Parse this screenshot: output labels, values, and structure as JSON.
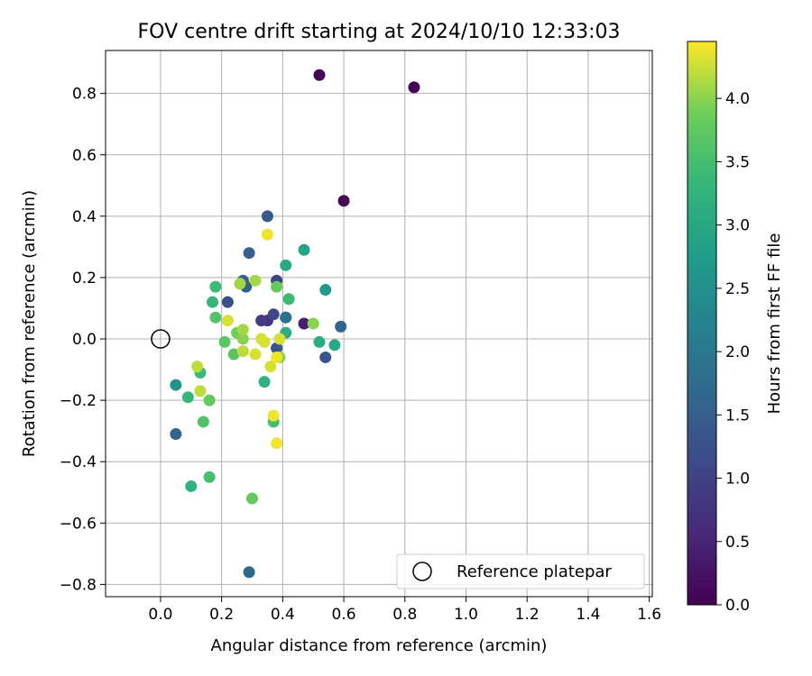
{
  "chart_data": {
    "type": "scatter",
    "title": "FOV centre drift starting at 2024/10/10 12:33:03",
    "xlabel": "Angular distance from reference (arcmin)",
    "ylabel": "Rotation from reference (arcmin)",
    "xlim": [
      -0.18,
      1.61
    ],
    "ylim": [
      -0.84,
      0.94
    ],
    "x_ticks": [
      0.0,
      0.2,
      0.4,
      0.6,
      0.8,
      1.0,
      1.2,
      1.4,
      1.6
    ],
    "x_tick_labels": [
      "0.0",
      "0.2",
      "0.4",
      "0.6",
      "0.8",
      "1.0",
      "1.2",
      "1.4",
      "1.6"
    ],
    "y_ticks": [
      -0.8,
      -0.6,
      -0.4,
      -0.2,
      0.0,
      0.2,
      0.4,
      0.6,
      0.8
    ],
    "y_tick_labels": [
      "−0.8",
      "−0.6",
      "−0.4",
      "−0.2",
      "0.0",
      "0.2",
      "0.4",
      "0.6",
      "0.8"
    ],
    "grid": true,
    "legend": {
      "placement": "lower-right",
      "entries": [
        "Reference platepar"
      ]
    },
    "reference_point": {
      "x": 0.0,
      "y": 0.0,
      "label": "Reference platepar"
    },
    "colorbar": {
      "label": "Hours from first FF file",
      "min": 0.0,
      "max": 4.45,
      "ticks": [
        0.0,
        0.5,
        1.0,
        1.5,
        2.0,
        2.5,
        3.0,
        3.5,
        4.0
      ],
      "tick_labels": [
        "0.0",
        "0.5",
        "1.0",
        "1.5",
        "2.0",
        "2.5",
        "3.0",
        "3.5",
        "4.0"
      ],
      "colormap": "viridis"
    },
    "points": [
      {
        "x": 0.52,
        "y": 0.86,
        "h": 0.05
      },
      {
        "x": 0.83,
        "y": 0.82,
        "h": 0.05
      },
      {
        "x": 0.6,
        "y": 0.45,
        "h": 0.08
      },
      {
        "x": 0.47,
        "y": 0.05,
        "h": 0.4
      },
      {
        "x": 0.35,
        "y": 0.06,
        "h": 0.7
      },
      {
        "x": 0.33,
        "y": 0.06,
        "h": 0.9
      },
      {
        "x": 0.38,
        "y": 0.19,
        "h": 1.0
      },
      {
        "x": 0.37,
        "y": 0.08,
        "h": 1.1
      },
      {
        "x": 0.41,
        "y": 0.07,
        "h": 1.2
      },
      {
        "x": 0.22,
        "y": 0.12,
        "h": 1.2
      },
      {
        "x": 0.54,
        "y": -0.06,
        "h": 1.3
      },
      {
        "x": 0.38,
        "y": -0.03,
        "h": 1.3
      },
      {
        "x": 0.35,
        "y": 0.4,
        "h": 1.4
      },
      {
        "x": 0.29,
        "y": 0.28,
        "h": 1.5
      },
      {
        "x": 0.27,
        "y": 0.19,
        "h": 1.5
      },
      {
        "x": 0.28,
        "y": 0.17,
        "h": 1.5
      },
      {
        "x": 0.59,
        "y": 0.04,
        "h": 1.6
      },
      {
        "x": 0.05,
        "y": -0.31,
        "h": 1.6
      },
      {
        "x": 0.29,
        "y": -0.76,
        "h": 1.7
      },
      {
        "x": 0.41,
        "y": 0.07,
        "h": 1.8
      },
      {
        "x": 0.05,
        "y": -0.15,
        "h": 2.6
      },
      {
        "x": 0.54,
        "y": 0.16,
        "h": 2.7
      },
      {
        "x": 0.47,
        "y": 0.29,
        "h": 2.9
      },
      {
        "x": 0.41,
        "y": 0.24,
        "h": 3.0
      },
      {
        "x": 0.57,
        "y": -0.02,
        "h": 3.0
      },
      {
        "x": 0.52,
        "y": -0.01,
        "h": 3.1
      },
      {
        "x": 0.41,
        "y": 0.02,
        "h": 3.1
      },
      {
        "x": 0.34,
        "y": -0.14,
        "h": 3.2
      },
      {
        "x": 0.1,
        "y": -0.48,
        "h": 3.2
      },
      {
        "x": 0.09,
        "y": -0.19,
        "h": 3.3
      },
      {
        "x": 0.17,
        "y": 0.12,
        "h": 3.3
      },
      {
        "x": 0.42,
        "y": 0.13,
        "h": 3.4
      },
      {
        "x": 0.18,
        "y": 0.17,
        "h": 3.4
      },
      {
        "x": 0.13,
        "y": -0.11,
        "h": 3.4
      },
      {
        "x": 0.37,
        "y": -0.27,
        "h": 3.5
      },
      {
        "x": 0.16,
        "y": -0.45,
        "h": 3.5
      },
      {
        "x": 0.14,
        "y": -0.27,
        "h": 3.6
      },
      {
        "x": 0.18,
        "y": 0.07,
        "h": 3.6
      },
      {
        "x": 0.24,
        "y": -0.05,
        "h": 3.7
      },
      {
        "x": 0.21,
        "y": -0.01,
        "h": 3.7
      },
      {
        "x": 0.3,
        "y": -0.52,
        "h": 3.8
      },
      {
        "x": 0.38,
        "y": 0.17,
        "h": 3.8
      },
      {
        "x": 0.16,
        "y": -0.2,
        "h": 3.8
      },
      {
        "x": 0.25,
        "y": 0.02,
        "h": 3.9
      },
      {
        "x": 0.27,
        "y": 0.0,
        "h": 4.0
      },
      {
        "x": 0.5,
        "y": 0.05,
        "h": 4.0
      },
      {
        "x": 0.39,
        "y": -0.06,
        "h": 4.0
      },
      {
        "x": 0.31,
        "y": 0.19,
        "h": 4.1
      },
      {
        "x": 0.26,
        "y": 0.18,
        "h": 4.1
      },
      {
        "x": 0.27,
        "y": 0.03,
        "h": 4.1
      },
      {
        "x": 0.27,
        "y": -0.04,
        "h": 4.2
      },
      {
        "x": 0.12,
        "y": -0.09,
        "h": 4.2
      },
      {
        "x": 0.13,
        "y": -0.17,
        "h": 4.2
      },
      {
        "x": 0.22,
        "y": 0.06,
        "h": 4.3
      },
      {
        "x": 0.36,
        "y": -0.09,
        "h": 4.3
      },
      {
        "x": 0.34,
        "y": -0.01,
        "h": 4.3
      },
      {
        "x": 0.33,
        "y": 0.0,
        "h": 4.3
      },
      {
        "x": 0.31,
        "y": -0.05,
        "h": 4.3
      },
      {
        "x": 0.39,
        "y": 0.0,
        "h": 4.3
      },
      {
        "x": 0.38,
        "y": -0.06,
        "h": 4.4
      },
      {
        "x": 0.37,
        "y": -0.25,
        "h": 4.4
      },
      {
        "x": 0.38,
        "y": -0.34,
        "h": 4.4
      },
      {
        "x": 0.35,
        "y": 0.34,
        "h": 4.4
      }
    ]
  }
}
